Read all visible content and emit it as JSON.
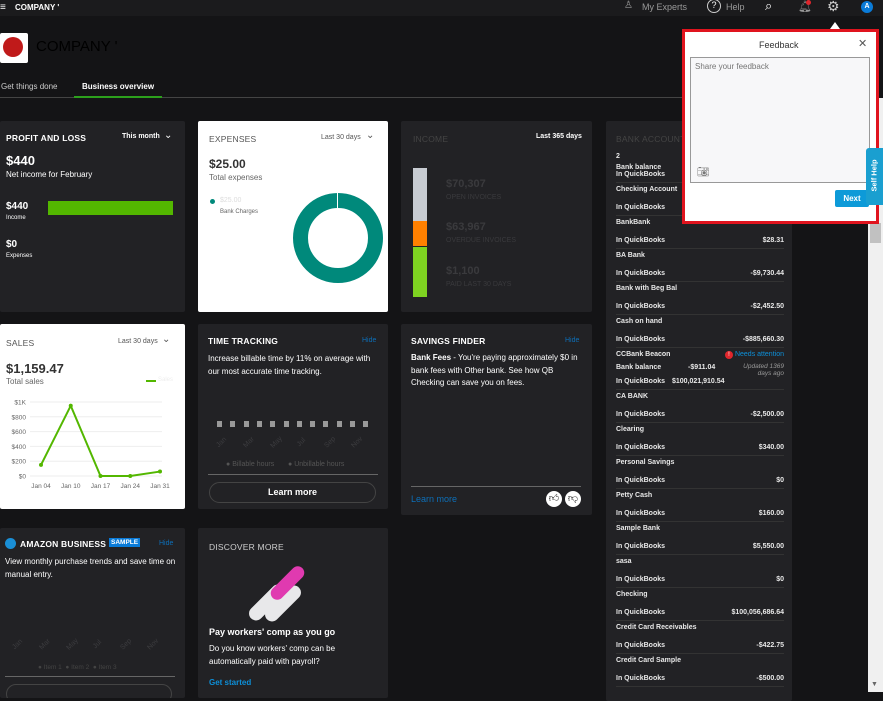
{
  "topbar": {
    "company": "COMPANY '",
    "my_experts": "My Experts",
    "help": "Help",
    "avatar": "A"
  },
  "header": {
    "company_name": "COMPANY '"
  },
  "tabs": [
    {
      "label": "Get things done"
    },
    {
      "label": "Business overview",
      "active": true
    }
  ],
  "profit_loss": {
    "title": "PROFIT AND LOSS",
    "period": "This month",
    "net": "$440",
    "net_label": "Net income for February",
    "income": "$440",
    "income_label": "Income",
    "expenses": "$0",
    "expenses_label": "Expenses",
    "income_fraction": 1.0
  },
  "expenses": {
    "title": "EXPENSES",
    "period": "Last 30 days",
    "total": "$25.00",
    "total_label": "Total expenses",
    "legend_value": "$25.00",
    "legend_label": "Bank Charges",
    "color": "#00897b"
  },
  "income": {
    "title": "INCOME",
    "period": "Last 365 days",
    "open": "$70,307",
    "open_label": "OPEN INVOICES",
    "overdue": "$63,967",
    "overdue_label": "OVERDUE INVOICES",
    "paid": "$1,100",
    "paid_label": "PAID LAST 30 DAYS"
  },
  "sales": {
    "title": "SALES",
    "period": "Last 30 days",
    "total": "$1,159.47",
    "total_label": "Total sales",
    "legend": "Sales",
    "chart_data": {
      "type": "line",
      "categories": [
        "Jan 04",
        "Jan 10",
        "Jan 17",
        "Jan 24",
        "Jan 31"
      ],
      "series": [
        {
          "name": "Sales",
          "values": [
            150,
            950,
            0,
            0,
            60
          ]
        }
      ],
      "yticks": [
        "$0",
        "$200",
        "$400",
        "$600",
        "$800",
        "$1K"
      ],
      "ylim": [
        0,
        1000
      ],
      "color": "#53b700"
    }
  },
  "time_tracking": {
    "title": "TIME TRACKING",
    "hide": "Hide",
    "text": "Increase billable time by 11% on average with our most accurate time tracking.",
    "months": [
      "Jan",
      "Mar",
      "May",
      "Jul",
      "Sep",
      "Nov"
    ],
    "legend1": "Billable hours",
    "legend2": "Unbillable hours",
    "button": "Learn more"
  },
  "savings": {
    "title": "SAVINGS FINDER",
    "hide": "Hide",
    "bold": "Bank Fees",
    "text": " - You're paying approximately $0 in bank fees with Other bank. See how QB Checking can save you on fees.",
    "link": "Learn more"
  },
  "amazon": {
    "title": "AMAZON BUSINESS",
    "badge": "SAMPLE",
    "hide": "Hide",
    "text": "View monthly purchase trends and save time on manual entry.",
    "months": [
      "Jan",
      "Mar",
      "May",
      "Jul",
      "Sep",
      "Nov"
    ],
    "legend": [
      "Item 1",
      "Item 2",
      "Item 3"
    ]
  },
  "discover": {
    "title": "DISCOVER MORE",
    "heading": "Pay workers' comp as you go",
    "text": "Do you know workers' comp can be automatically paid with payroll?",
    "link": "Get started"
  },
  "bank": {
    "title": "BANK ACCOUNTS",
    "accounts": [
      {
        "name": "2",
        "line1": "Bank balance",
        "line2": "In QuickBooks",
        "amount": ""
      },
      {
        "name": "Checking Account",
        "line2": "In QuickBooks",
        "amount": ""
      },
      {
        "name": "BankBank",
        "line2": "In QuickBooks",
        "amount": "$28.31"
      },
      {
        "name": "BA Bank",
        "line2": "In QuickBooks",
        "amount": "-$9,730.44"
      },
      {
        "name": "Bank with Beg Bal",
        "line2": "In QuickBooks",
        "amount": "-$2,452.50"
      },
      {
        "name": "Cash on hand",
        "line2": "In QuickBooks",
        "amount": "-$885,660.30"
      },
      {
        "name": "CCBank Beacon",
        "status": "Needs attention",
        "line1": "Bank balance",
        "bank_amount": "-$911.04",
        "line2": "In QuickBooks",
        "amount": "$100,021,910.54",
        "updated": "Updated 1369 days ago"
      },
      {
        "name": "CA BANK",
        "line2": "In QuickBooks",
        "amount": "-$2,500.00"
      },
      {
        "name": "Clearing",
        "line2": "In QuickBooks",
        "amount": "$340.00"
      },
      {
        "name": "Personal Savings",
        "line2": "In QuickBooks",
        "amount": "$0"
      },
      {
        "name": "Petty Cash",
        "line2": "In QuickBooks",
        "amount": "$160.00"
      },
      {
        "name": "Sample Bank",
        "line2": "In QuickBooks",
        "amount": "$5,550.00"
      },
      {
        "name": "sasa",
        "line2": "In QuickBooks",
        "amount": "$0"
      },
      {
        "name": "Checking",
        "line2": "In QuickBooks",
        "amount": "$100,056,686.64"
      },
      {
        "name": "Credit Card Receivables",
        "line2": "In QuickBooks",
        "amount": "-$422.75"
      },
      {
        "name": "Credit Card Sample",
        "line2": "In QuickBooks",
        "amount": "-$500.00"
      }
    ]
  },
  "feedback": {
    "title": "Feedback",
    "placeholder": "Share your feedback",
    "next": "Next",
    "self_help": "Self Help"
  }
}
